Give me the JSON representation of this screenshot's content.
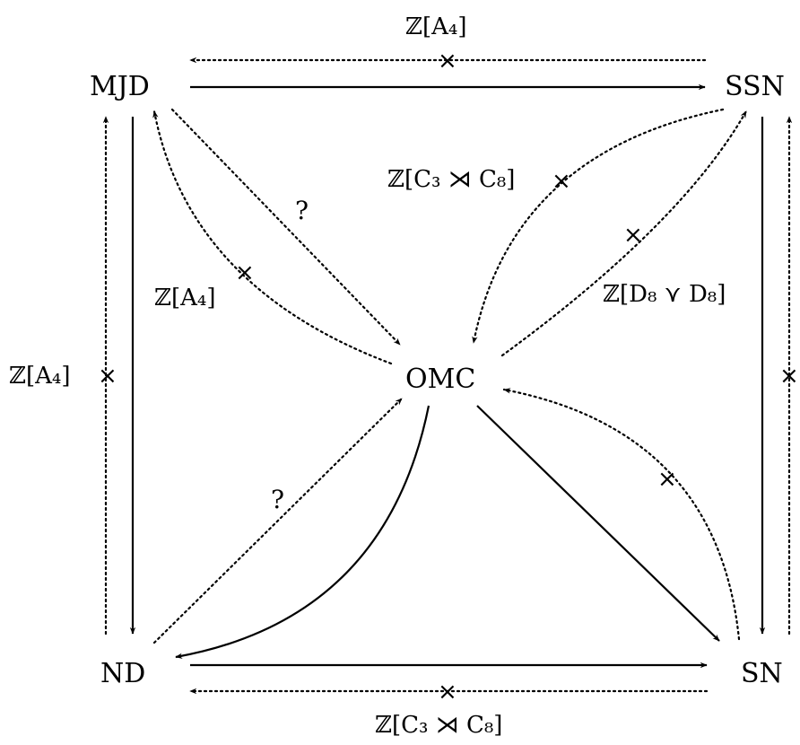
{
  "nodes": {
    "mjd": "MJD",
    "ssn": "SSN",
    "omc": "OMC",
    "nd": "ND",
    "sn": "SN"
  },
  "labels": {
    "top": "ℤ[A₄]",
    "bottom": "ℤ[C₃ ⋊ C₈]",
    "left": "ℤ[A₄]",
    "mjd_omc": "ℤ[A₄]",
    "ssn_omc_upper": "ℤ[C₃ ⋊ C₈]",
    "ssn_omc_lower": "ℤ[D₈ ⋎ D₈]"
  },
  "marks": {
    "cross": "×",
    "question": "?"
  }
}
